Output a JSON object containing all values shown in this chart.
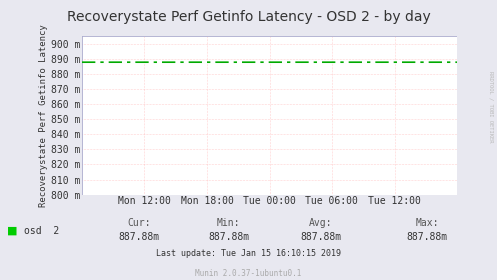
{
  "title": "Recoverystate Perf Getinfo Latency - OSD 2 - by day",
  "ylabel": "Recoverystate Perf Getinfo Latency",
  "background_color": "#e8e8f0",
  "plot_bg_color": "#ffffff",
  "grid_color_major": "#aaaacc",
  "grid_color_minor": "#ffaaaa",
  "line_color": "#00aa00",
  "line_value": 887.88,
  "ylim": [
    800,
    905
  ],
  "yticks": [
    800,
    810,
    820,
    830,
    840,
    850,
    860,
    870,
    880,
    890,
    900
  ],
  "ytick_labels": [
    "800 m",
    "810 m",
    "820 m",
    "830 m",
    "840 m",
    "850 m",
    "860 m",
    "870 m",
    "880 m",
    "890 m",
    "900 m"
  ],
  "xtick_labels": [
    "Mon 12:00",
    "Mon 18:00",
    "Tue 00:00",
    "Tue 06:00",
    "Tue 12:00"
  ],
  "xtick_positions": [
    0.166,
    0.333,
    0.5,
    0.666,
    0.833
  ],
  "legend_label": "osd  2",
  "legend_color": "#00cc00",
  "cur_label": "Cur:",
  "min_label": "Min:",
  "avg_label": "Avg:",
  "max_label": "Max:",
  "cur_val": "887.88m",
  "min_val": "887.88m",
  "avg_val": "887.88m",
  "max_val": "887.88m",
  "last_update": "Last update: Tue Jan 15 16:10:15 2019",
  "munin_text": "Munin 2.0.37-1ubuntu0.1",
  "rrdtool_text": "RRDTOOL / TOBI OETIKER",
  "title_fontsize": 10,
  "tick_fontsize": 7,
  "ylabel_fontsize": 6.5,
  "legend_fontsize": 7,
  "stat_fontsize": 7,
  "small_fontsize": 6,
  "border_color": "#aaaacc"
}
